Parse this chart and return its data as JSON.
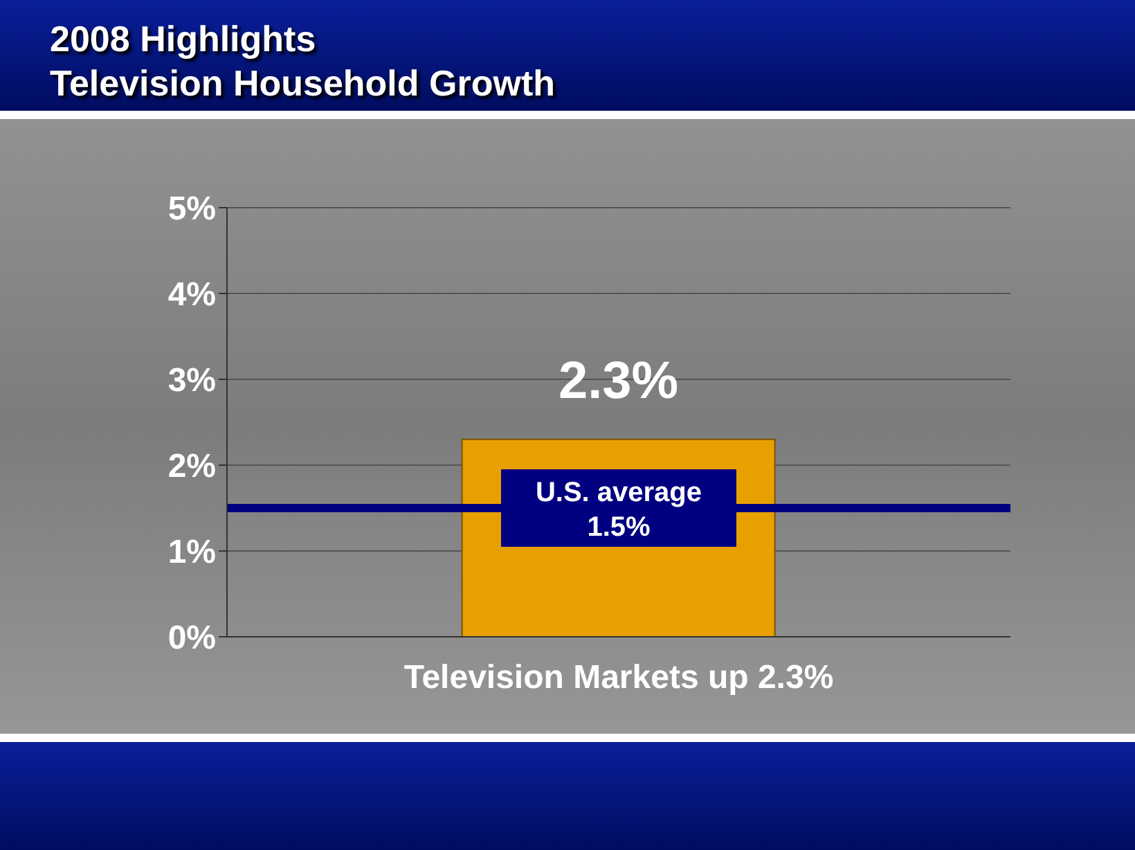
{
  "chart_data": {
    "type": "bar",
    "title": "2008 Highlights",
    "subtitle": "Television Household Growth",
    "categories": [
      "Television Markets up 2.3%"
    ],
    "values": [
      2.3
    ],
    "color": "#e8a000",
    "value_labels": [
      "2.3%"
    ],
    "ylim": [
      0,
      5
    ],
    "yticks": [
      {
        "value": 0,
        "label": "0%"
      },
      {
        "value": 1,
        "label": "1%"
      },
      {
        "value": 2,
        "label": "2%"
      },
      {
        "value": 3,
        "label": "3%"
      },
      {
        "value": 4,
        "label": "4%"
      },
      {
        "value": 5,
        "label": "5%"
      }
    ],
    "grid": "y",
    "ref_lines": [
      {
        "axis": "y",
        "value": 1.5,
        "label": "U.S. average 1.5%",
        "color": "#000080"
      }
    ]
  }
}
